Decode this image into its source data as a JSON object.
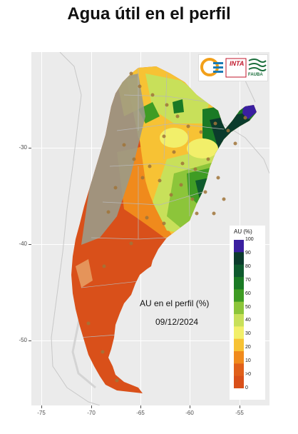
{
  "title": "Agua útil en el perfil",
  "map": {
    "annotation_line1": "AU en el perfil (%)",
    "annotation_line2": "09/12/2024",
    "x_ticks": [
      "-75",
      "-70",
      "-65",
      "-60",
      "-55"
    ],
    "y_ticks": [
      "-30",
      "-40",
      "-50"
    ]
  },
  "logos": {
    "inta": "INTA",
    "fauba": "FAUBA"
  },
  "legend": {
    "title": "AU (%)",
    "labels": [
      "100",
      "90",
      "80",
      "70",
      "60",
      "50",
      "40",
      "30",
      "20",
      "10",
      ">0",
      "0"
    ],
    "colors": [
      "#3a1fa0",
      "#0b3b2c",
      "#0e5a2e",
      "#1a7a25",
      "#3f9c24",
      "#8cc53a",
      "#c8e05a",
      "#f2ef6a",
      "#f7c234",
      "#f08a1c",
      "#e0601a",
      "#d9501a"
    ]
  }
}
